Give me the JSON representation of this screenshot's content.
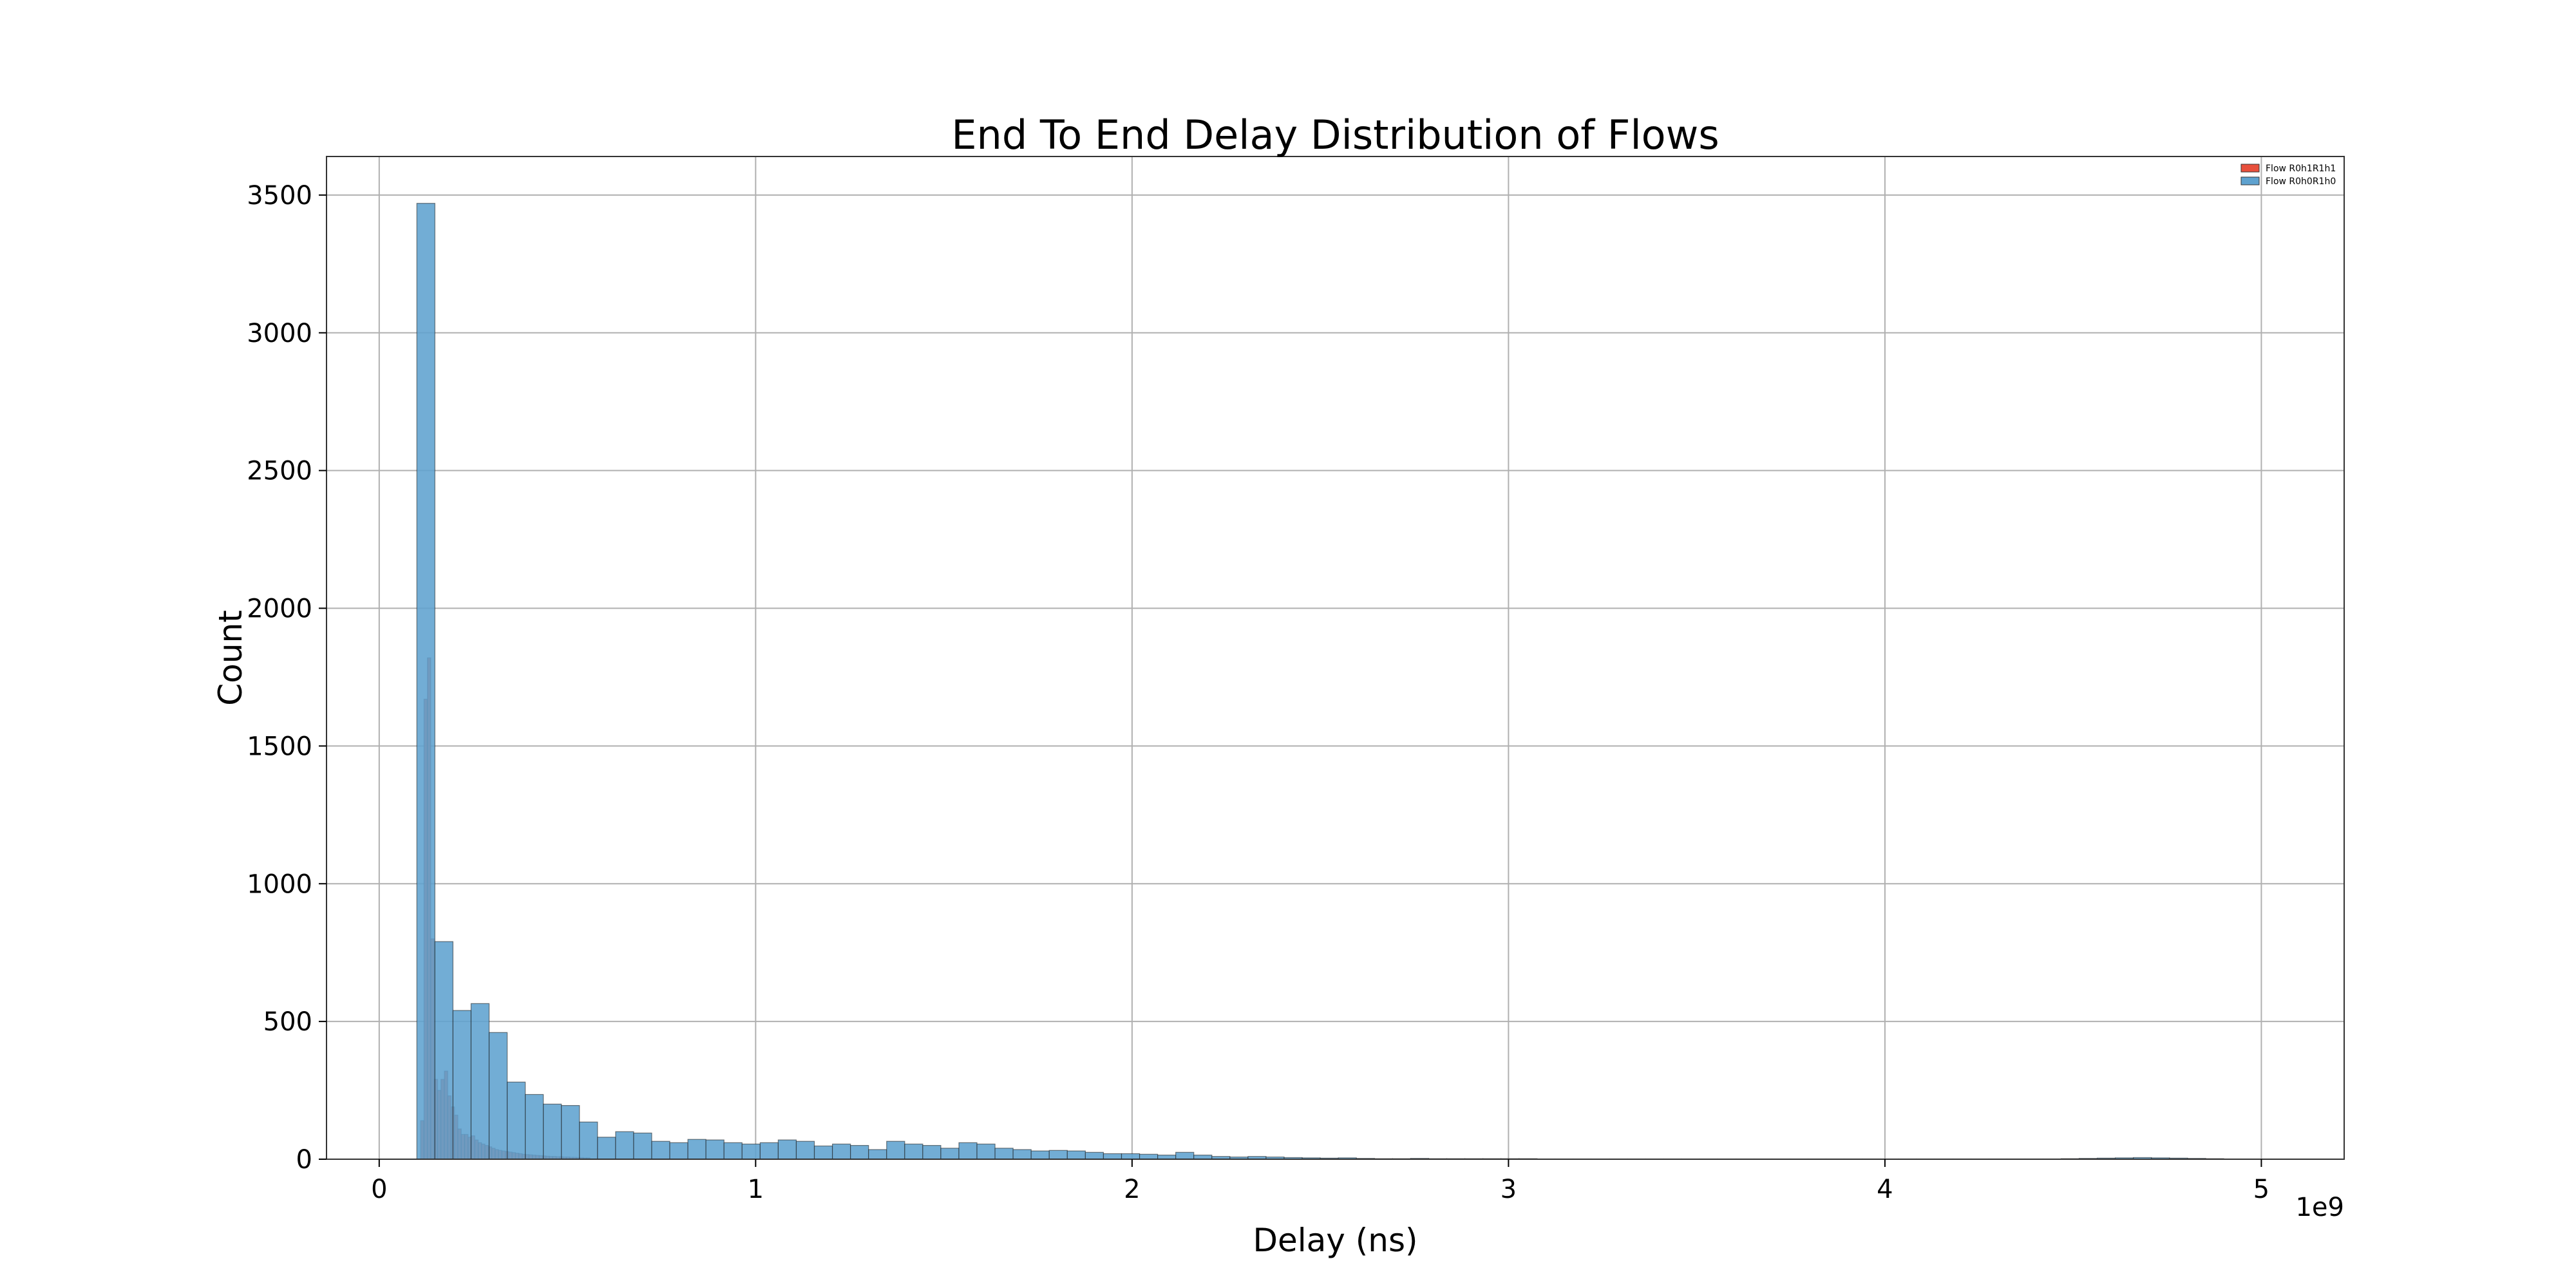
{
  "chart_data": {
    "type": "bar",
    "title": "End To End Delay Distribution of Flows",
    "xlabel": "Delay (ns)",
    "ylabel": "Count",
    "x_offset_label": "1e9",
    "xlim": [
      -140000000,
      5220000000
    ],
    "ylim": [
      0,
      3640
    ],
    "x_ticks": [
      0,
      1,
      2,
      3,
      4,
      5
    ],
    "y_ticks": [
      0,
      500,
      1000,
      1500,
      2000,
      2500,
      3000,
      3500
    ],
    "grid": true,
    "legend_position": "top-right",
    "bin_width": 48000000,
    "series": [
      {
        "name": "Flow R0h1R1h1",
        "color": "#e8503c",
        "bin_start": 110000000,
        "bin_width": 9000000,
        "values": [
          140,
          1670,
          1820,
          800,
          290,
          250,
          290,
          320,
          230,
          190,
          160,
          110,
          90,
          90,
          80,
          85,
          70,
          60,
          55,
          50,
          45,
          40,
          35,
          32,
          30,
          28,
          26,
          24,
          22,
          20,
          18,
          17,
          16,
          15,
          14,
          13,
          12,
          11,
          10,
          10,
          9,
          9,
          8,
          8,
          7,
          7,
          6,
          6,
          5,
          5
        ]
      },
      {
        "name": "Flow R0h0R1h0",
        "color": "#5ea2cf",
        "bin_start": 100000000,
        "bin_width": 48000000,
        "values": [
          3470,
          790,
          540,
          565,
          460,
          280,
          235,
          200,
          195,
          135,
          80,
          100,
          95,
          65,
          60,
          72,
          70,
          60,
          55,
          60,
          70,
          65,
          48,
          55,
          50,
          35,
          65,
          55,
          50,
          40,
          60,
          55,
          40,
          35,
          30,
          32,
          30,
          25,
          20,
          20,
          18,
          15,
          25,
          15,
          10,
          8,
          10,
          8,
          6,
          5,
          4,
          5,
          3,
          2,
          2,
          3,
          2,
          2,
          2,
          2,
          2,
          2,
          1,
          1,
          1,
          1,
          1,
          1,
          1,
          1,
          1,
          1,
          1,
          1,
          1,
          1,
          1,
          1,
          1,
          1,
          1,
          1,
          1,
          1,
          1,
          1,
          1,
          1,
          1,
          1,
          1,
          2,
          3,
          4,
          5,
          6,
          5,
          4,
          3,
          2
        ]
      }
    ]
  }
}
